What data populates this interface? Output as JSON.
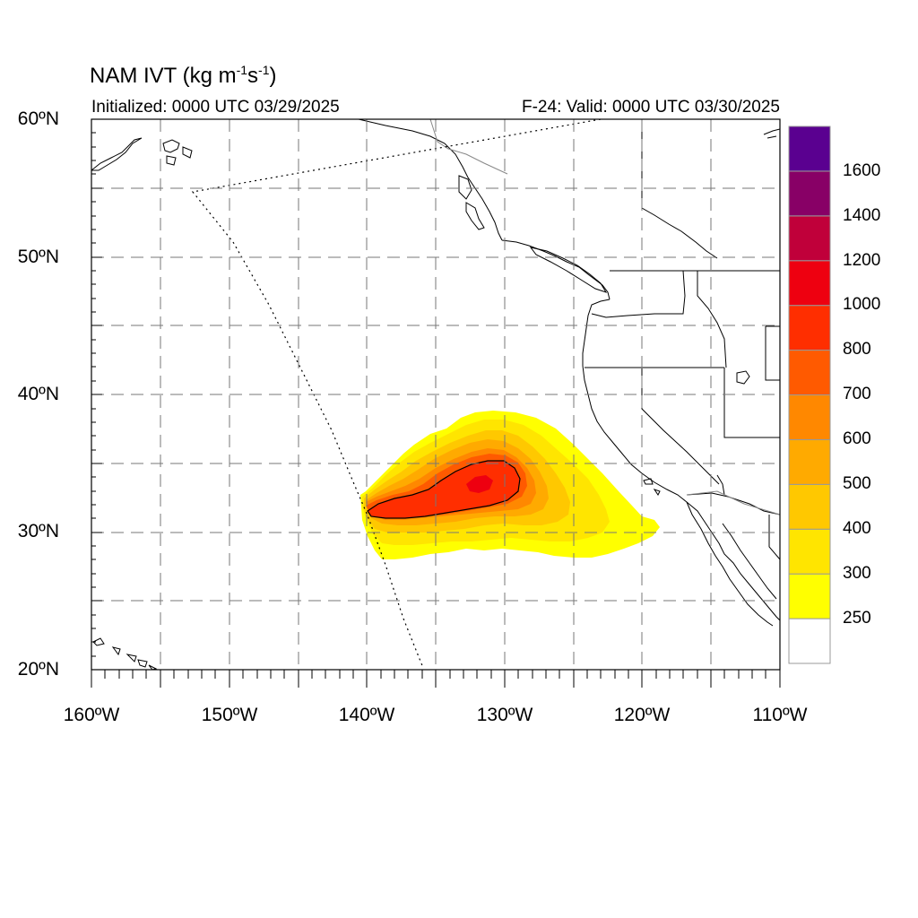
{
  "title": {
    "text": "NAM IVT (kg m",
    "sup1": "-1",
    "mid": "s",
    "sup2": "-1",
    "end": ")"
  },
  "subtitle_left": "Initialized: 0000 UTC 03/29/2025",
  "subtitle_right": "F-24: Valid: 0000 UTC 03/30/2025",
  "lat_labels": [
    "60ºN",
    "50ºN",
    "40ºN",
    "30ºN",
    "20ºN"
  ],
  "lon_labels": [
    "160ºW",
    "150ºW",
    "140ºW",
    "130ºW",
    "120ºW",
    "110ºW"
  ],
  "colorbar": {
    "labels": [
      "1600",
      "1400",
      "1200",
      "1000",
      "800",
      "700",
      "600",
      "500",
      "400",
      "300",
      "250"
    ],
    "colors": [
      "#ffffff",
      "#ffff00",
      "#ffe500",
      "#ffc800",
      "#ffaa00",
      "#ff8800",
      "#ff5a00",
      "#ff2e00",
      "#ee0010",
      "#c0003a",
      "#880066",
      "#5a0090"
    ]
  },
  "chart_data": {
    "type": "heatmap",
    "lon_range": [
      -160,
      -110
    ],
    "lat_range": [
      20,
      60
    ],
    "contour_level": 800,
    "ivt_maximum_approx": {
      "lon": -131.5,
      "lat": 33.3,
      "value": 900
    },
    "grid": true
  }
}
